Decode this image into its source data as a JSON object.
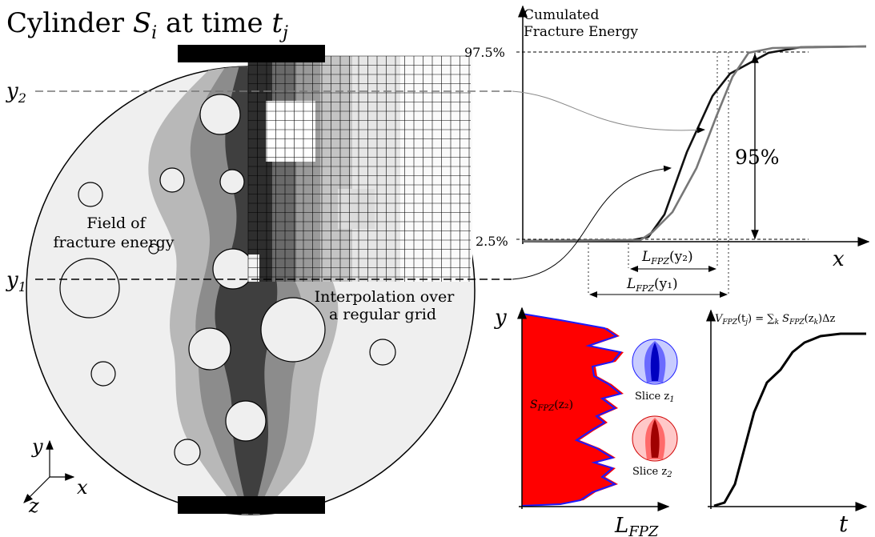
{
  "title": {
    "prefix": "Cylinder ",
    "s": "S",
    "s_sub": "i",
    "mid": " at time ",
    "t": "t",
    "t_sub": "j"
  },
  "labels": {
    "y2": "y",
    "y2_sub": "2",
    "y1": "y",
    "y1_sub": "1",
    "field_line1": "Field of",
    "field_line2": "fracture energy",
    "interp_line1": "Interpolation over",
    "interp_line2": "a regular grid",
    "axis_y": "y",
    "axis_x": "x",
    "axis_z": "z"
  },
  "cumulative_plot": {
    "ylabel_line1": "Cumulated",
    "ylabel_line2": "Fracture Energy",
    "xlabel": "x",
    "tick_high": "97.5%",
    "tick_low": "2.5%",
    "span_label": "95%",
    "lfpz_y2": "L",
    "lfpz_y2_sub": "FPZ",
    "lfpz_y2_arg": "(y₂)",
    "lfpz_y1": "L",
    "lfpz_y1_sub": "FPZ",
    "lfpz_y1_arg": "(y₁)",
    "curve_dark_color": "#111111",
    "curve_grey_color": "#777777"
  },
  "profile_plot": {
    "ylabel": "y",
    "xlabel": "L",
    "xlabel_sub": "FPZ",
    "area_label": "S",
    "area_label_sub": "FPZ",
    "area_label_arg": "(z₂)",
    "slice1_label": "Slice z",
    "slice1_sub": "1",
    "slice2_label": "Slice z",
    "slice2_sub": "2",
    "fill_color": "#ff0000",
    "line_color": "#1a1aff"
  },
  "volume_plot": {
    "formula": "V",
    "formula_sub": "FPZ",
    "formula_rest": "(t",
    "formula_rest_sub": "j",
    "formula_eq": ") = ∑",
    "formula_k": "k",
    "formula_s": " S",
    "formula_s_sub": "FPZ",
    "formula_tail": "(z",
    "formula_tail_sub": "k",
    "formula_end": ")Δz",
    "xlabel": "t"
  }
}
